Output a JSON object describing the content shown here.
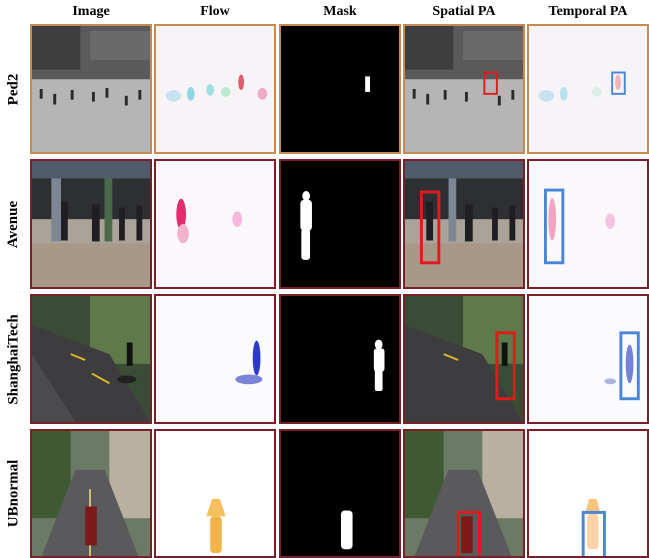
{
  "headers": [
    "Image",
    "Flow",
    "Mask",
    "Spatial PA",
    "Temporal PA"
  ],
  "rows": [
    {
      "label": "Ped2"
    },
    {
      "label": "Avenue"
    },
    {
      "label": "ShanghaiTech"
    },
    {
      "label": "UBnormal"
    }
  ],
  "colors": {
    "spatial_box": "#e01b1b",
    "temporal_box": "#4a86d8",
    "ped2_frame": "#c98a4e",
    "other_frame": "#7a1f25"
  }
}
